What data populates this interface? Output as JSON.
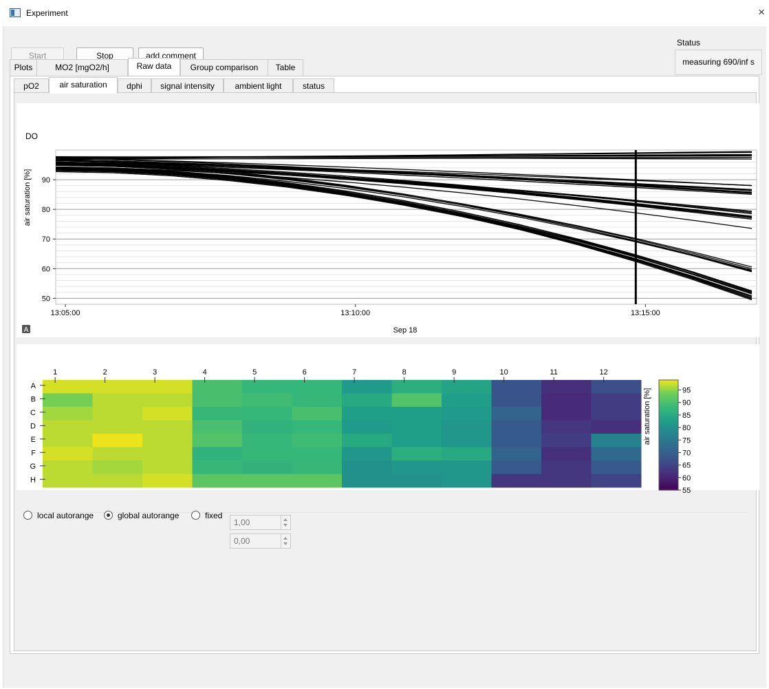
{
  "window": {
    "title": "Experiment",
    "app_icon": "window-app-icon",
    "close_glyph": "×"
  },
  "toolbar": {
    "start_label": "Start",
    "stop_label": "Stop",
    "comment_label": "add comment"
  },
  "status": {
    "label": "Status",
    "value": "measuring 690/inf s"
  },
  "tabs": [
    {
      "label": "Plots"
    },
    {
      "label": "MO2 [mgO2/h]"
    },
    {
      "label": "Raw data"
    },
    {
      "label": "Group comparison"
    },
    {
      "label": "Table"
    }
  ],
  "subtabs": [
    {
      "label": "pO2"
    },
    {
      "label": "air saturation"
    },
    {
      "label": "dphi"
    },
    {
      "label": "signal intensity"
    },
    {
      "label": "ambient light"
    },
    {
      "label": "status"
    }
  ],
  "chart_data": [
    {
      "type": "line",
      "title": "DO",
      "ylabel": "air saturation [%]",
      "xlabel": "Sep 18",
      "x_ticks": [
        "13:05:00",
        "13:10:00",
        "13:15:00"
      ],
      "y_ticks": [
        50,
        60,
        70,
        80,
        90
      ],
      "ylim": [
        48,
        100
      ],
      "x": [
        0,
        60,
        120,
        180,
        240,
        300,
        360,
        420,
        480,
        540,
        600,
        660,
        720
      ],
      "x_units": "seconds since 13:04:50",
      "cursor_x": 600,
      "grid": true,
      "autorange_button": "A",
      "series_groups": [
        {
          "count": 8,
          "start": 97.5,
          "end": 98.3,
          "curve": 0
        },
        {
          "count": 10,
          "start": 96.5,
          "end": 86.5,
          "curve": 0.6
        },
        {
          "count": 10,
          "start": 95.5,
          "end": 78.0,
          "curve": 1.0
        },
        {
          "count": 5,
          "start": 95.0,
          "end": 59.5,
          "curve": 1.6
        },
        {
          "count": 14,
          "start": 93.5,
          "end": 51.0,
          "curve": 1.8
        },
        {
          "count": 1,
          "start": 95.0,
          "end": 72.0,
          "curve": 1.2
        }
      ]
    },
    {
      "type": "heatmap",
      "columns": [
        "1",
        "2",
        "3",
        "4",
        "5",
        "6",
        "7",
        "8",
        "9",
        "10",
        "11",
        "12"
      ],
      "rows": [
        "A",
        "B",
        "C",
        "D",
        "E",
        "F",
        "G",
        "H"
      ],
      "colorbar": {
        "label": "air saturation [%]",
        "min": 55,
        "max": 99,
        "ticks": [
          55,
          60,
          65,
          70,
          75,
          80,
          85,
          90,
          95
        ]
      },
      "colormap": "viridis",
      "values": [
        [
          98,
          98,
          98,
          90,
          88,
          88,
          82,
          86,
          84,
          68,
          62,
          67
        ],
        [
          94,
          97,
          97,
          90,
          89,
          88,
          85,
          91,
          83,
          68,
          61,
          64
        ],
        [
          96,
          97,
          98,
          88,
          88,
          90,
          83,
          83,
          82,
          71,
          61,
          64
        ],
        [
          97,
          97,
          97,
          90,
          87,
          88,
          82,
          83,
          81,
          69,
          63,
          62
        ],
        [
          97,
          99,
          97,
          91,
          88,
          89,
          85,
          83,
          81,
          69,
          64,
          77
        ],
        [
          98,
          97,
          97,
          87,
          88,
          88,
          81,
          86,
          85,
          71,
          62,
          72
        ],
        [
          97,
          96,
          97,
          88,
          87,
          88,
          80,
          81,
          81,
          69,
          63,
          69
        ],
        [
          97,
          97,
          98,
          92,
          92,
          92,
          80,
          80,
          81,
          63,
          63,
          65
        ]
      ]
    }
  ],
  "range_controls": {
    "options": [
      {
        "label": "local autorange",
        "checked": false
      },
      {
        "label": "global autorange",
        "checked": true
      },
      {
        "label": "fixed",
        "checked": false
      }
    ],
    "fixed_max": "1,00",
    "fixed_min": "0,00"
  },
  "colors": {
    "plot_line": "#000000",
    "window_bg": "#f0f0f0",
    "panel_bg": "#ffffff"
  }
}
